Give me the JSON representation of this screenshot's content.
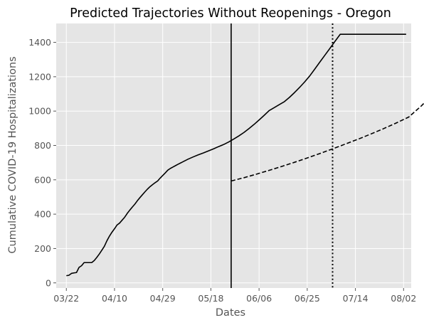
{
  "chart_data": {
    "type": "line",
    "title": "Predicted Trajectories Without Reopenings - Oregon",
    "xlabel": "Dates",
    "ylabel": "Cumulative COVID-19 Hospitalizations",
    "x_ticks": [
      {
        "day": 0,
        "label": "03/22"
      },
      {
        "day": 19,
        "label": "04/10"
      },
      {
        "day": 38,
        "label": "04/29"
      },
      {
        "day": 57,
        "label": "05/18"
      },
      {
        "day": 76,
        "label": "06/06"
      },
      {
        "day": 95,
        "label": "06/25"
      },
      {
        "day": 114,
        "label": "07/14"
      },
      {
        "day": 133,
        "label": "08/02"
      }
    ],
    "y_ticks": [
      0,
      200,
      400,
      600,
      800,
      1000,
      1200,
      1400
    ],
    "xlim": [
      "03/18",
      "08/05"
    ],
    "ylim": [
      -30,
      1510
    ],
    "grid": true,
    "background": "#e5e5e5",
    "grid_color": "#ffffff",
    "series": [
      {
        "style": "solid",
        "color": "#000000",
        "x": [
          0,
          1,
          2,
          3,
          4,
          5,
          6,
          7,
          8,
          9,
          10,
          11,
          12,
          13,
          14,
          15,
          16,
          17,
          18,
          19,
          20,
          21,
          22,
          23,
          24,
          25,
          26,
          27,
          28,
          29,
          30,
          31,
          32,
          33,
          34,
          35,
          36,
          37,
          38,
          39,
          40,
          41,
          42,
          43,
          44,
          46,
          48,
          50,
          52,
          54,
          56,
          58,
          60,
          62,
          64,
          66,
          68,
          70,
          72,
          74,
          76,
          78,
          80,
          82,
          84,
          86,
          88,
          90,
          92,
          94,
          96,
          98,
          100,
          102,
          104,
          106,
          108,
          110,
          112,
          114,
          116,
          118,
          120,
          122,
          124,
          126,
          128,
          130,
          132,
          134
        ],
        "y": [
          42,
          44,
          55,
          58,
          60,
          90,
          100,
          118,
          118,
          118,
          118,
          130,
          148,
          168,
          190,
          213,
          245,
          272,
          295,
          315,
          337,
          348,
          365,
          382,
          404,
          423,
          441,
          458,
          478,
          496,
          513,
          530,
          546,
          560,
          572,
          583,
          593,
          610,
          625,
          640,
          656,
          666,
          674,
          682,
          690,
          705,
          720,
          733,
          745,
          756,
          768,
          780,
          793,
          805,
          820,
          837,
          855,
          875,
          898,
          922,
          948,
          975,
          1003,
          1020,
          1038,
          1055,
          1080,
          1108,
          1138,
          1170,
          1205,
          1245,
          1286,
          1326,
          1366,
          1407,
          1447,
          1447,
          1447,
          1447,
          1447,
          1447,
          1447,
          1447,
          1447,
          1447,
          1447,
          1447,
          1447,
          1447
        ]
      },
      {
        "style": "dashed",
        "color": "#000000",
        "x": [
          65,
          70,
          75,
          80,
          85,
          90,
          95,
          100,
          105,
          110,
          115,
          120,
          125,
          130,
          135,
          140,
          145
        ],
        "y": [
          593,
          612,
          633,
          655,
          678,
          702,
          727,
          753,
          780,
          808,
          836,
          866,
          897,
          930,
          965,
          1030,
          1105
        ]
      }
    ],
    "vlines": [
      {
        "day": 65,
        "style": "solid",
        "color": "#000000"
      },
      {
        "day": 105,
        "style": "dotted",
        "color": "#000000"
      }
    ]
  }
}
